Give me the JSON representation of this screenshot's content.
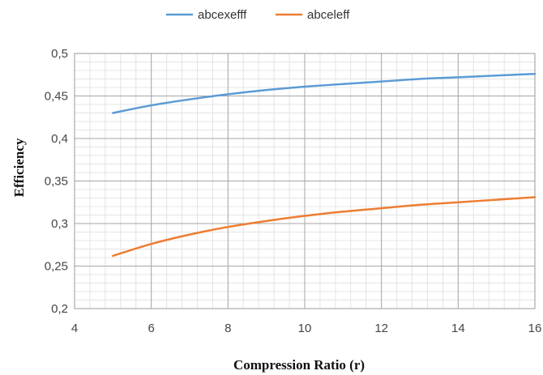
{
  "chart_data": {
    "type": "line",
    "title": "",
    "xlabel": "Compression Ratio (r)",
    "ylabel": "Efficiency",
    "xlim": [
      4,
      16
    ],
    "ylim": [
      0.2,
      0.5
    ],
    "x_ticks": [
      "4",
      "6",
      "8",
      "10",
      "12",
      "14",
      "16"
    ],
    "y_ticks": [
      "0,2",
      "0,25",
      "0,3",
      "0,35",
      "0,4",
      "0,45",
      "0,5"
    ],
    "grid": true,
    "legend_position": "top",
    "series": [
      {
        "name": "abcexefff",
        "color": "#5b9bd5",
        "x": [
          5,
          6,
          7,
          8,
          9,
          10,
          11,
          12,
          13,
          14,
          15,
          16
        ],
        "y": [
          0.43,
          0.439,
          0.446,
          0.452,
          0.457,
          0.461,
          0.464,
          0.467,
          0.47,
          0.472,
          0.474,
          0.476
        ]
      },
      {
        "name": "abceleff",
        "color": "#ed7d31",
        "x": [
          5,
          6,
          7,
          8,
          9,
          10,
          11,
          12,
          13,
          14,
          15,
          16
        ],
        "y": [
          0.262,
          0.276,
          0.287,
          0.296,
          0.303,
          0.309,
          0.314,
          0.318,
          0.322,
          0.325,
          0.328,
          0.331
        ]
      }
    ]
  }
}
